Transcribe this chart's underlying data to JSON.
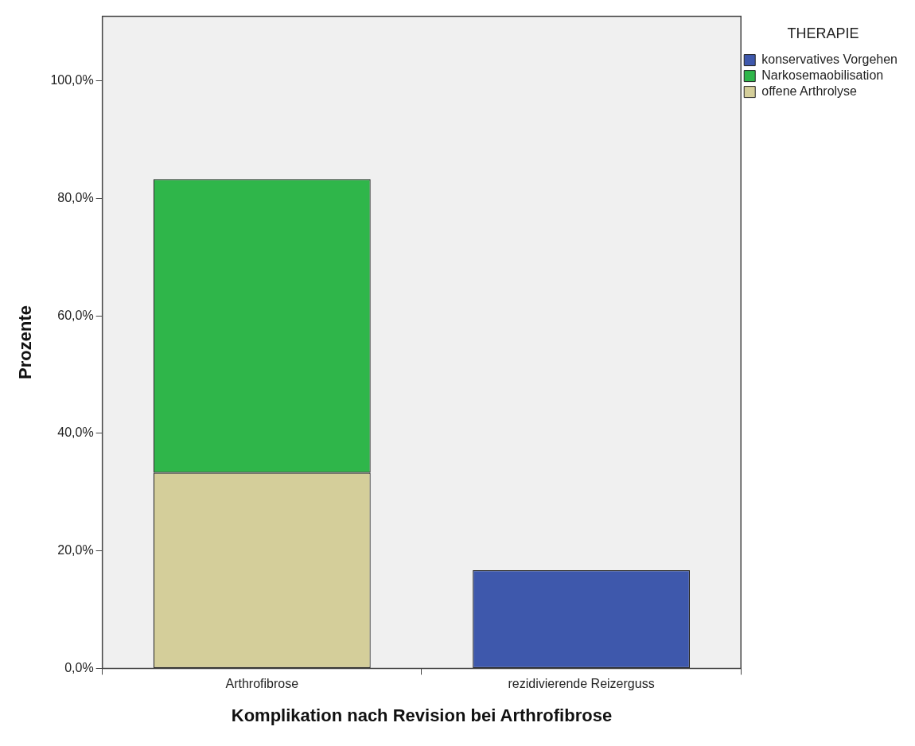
{
  "chart_data": {
    "type": "bar",
    "xlabel": "Komplikation nach Revision bei Arthrofibrose",
    "ylabel": "Prozente",
    "legend_title": "THERAPIE",
    "categories": [
      "Arthrofibrose",
      "rezidivierende Reizerguss"
    ],
    "stacked": true,
    "series": [
      {
        "name": "offene Arthrolyse",
        "color": "#d4ce9a",
        "values": [
          33.3,
          null
        ]
      },
      {
        "name": "Narkosemaobilisation",
        "color": "#2fb64a",
        "values": [
          50.0,
          null
        ]
      },
      {
        "name": "konservatives Vorgehen",
        "color": "#3e58ac",
        "values": [
          null,
          16.7
        ]
      }
    ],
    "ylim": [
      0,
      111
    ],
    "yticks": [
      {
        "value": 0,
        "label": "0,0%"
      },
      {
        "value": 20,
        "label": "20,0%"
      },
      {
        "value": 40,
        "label": "40,0%"
      },
      {
        "value": 60,
        "label": "60,0%"
      },
      {
        "value": 80,
        "label": "80,0%"
      },
      {
        "value": 100,
        "label": "100,0%"
      }
    ],
    "grid": false,
    "legend": "top right"
  }
}
